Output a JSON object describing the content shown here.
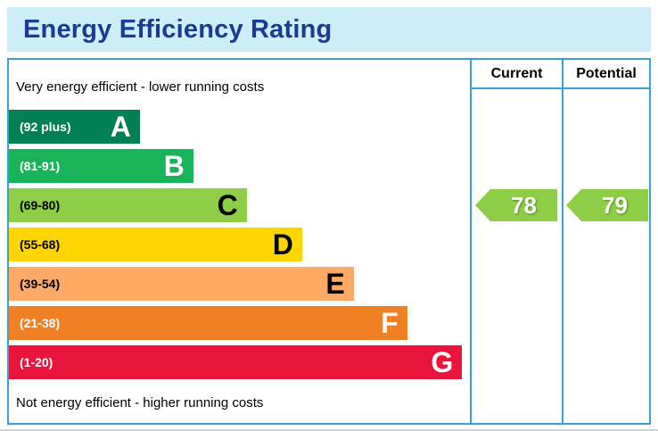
{
  "title": "Energy Efficiency Rating",
  "labels": {
    "top": "Very energy efficient - lower running costs",
    "bottom": "Not energy efficient - higher running costs"
  },
  "columns": [
    {
      "id": "current",
      "label": "Current"
    },
    {
      "id": "potential",
      "label": "Potential"
    }
  ],
  "colors": {
    "header_bg": "#cdeef9",
    "header_text": "#1a3b94",
    "border": "#36a1d4"
  },
  "chart_data": {
    "type": "bar",
    "title": "Energy Efficiency Rating",
    "bands": [
      {
        "letter": "A",
        "range": "(92 plus)",
        "min": 92,
        "max": 100,
        "color": "#008054",
        "text_color": "#ffffff",
        "width_pct": 28.4
      },
      {
        "letter": "B",
        "range": "(81-91)",
        "min": 81,
        "max": 91,
        "color": "#19b459",
        "text_color": "#ffffff",
        "width_pct": 40.0
      },
      {
        "letter": "C",
        "range": "(69-80)",
        "min": 69,
        "max": 80,
        "color": "#8dce46",
        "text_color": "#000000",
        "width_pct": 51.6
      },
      {
        "letter": "D",
        "range": "(55-68)",
        "min": 55,
        "max": 68,
        "color": "#ffd500",
        "text_color": "#000000",
        "width_pct": 63.6
      },
      {
        "letter": "E",
        "range": "(39-54)",
        "min": 39,
        "max": 54,
        "color": "#fcaa65",
        "text_color": "#000000",
        "width_pct": 74.8
      },
      {
        "letter": "F",
        "range": "(21-38)",
        "min": 21,
        "max": 38,
        "color": "#ef8023",
        "text_color": "#ffffff",
        "width_pct": 86.4
      },
      {
        "letter": "G",
        "range": "(1-20)",
        "min": 1,
        "max": 20,
        "color": "#e9153b",
        "text_color": "#ffffff",
        "width_pct": 98.3
      }
    ],
    "ratings": {
      "current": {
        "value": 78,
        "band": "C",
        "color": "#8dce46"
      },
      "potential": {
        "value": 79,
        "band": "C",
        "color": "#8dce46"
      }
    }
  }
}
